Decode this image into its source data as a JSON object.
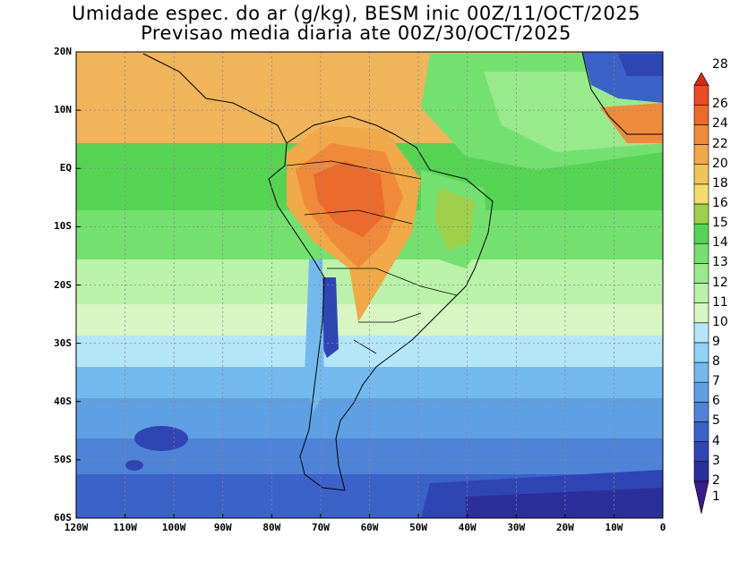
{
  "title": {
    "line1": "Umidade espec. do ar (g/kg), BESM inic 00Z/11/OCT/2025",
    "line2": "Previsao media diaria ate 00Z/30/OCT/2025"
  },
  "lat_labels": [
    "20N",
    "10N",
    "EQ",
    "10S",
    "20S",
    "30S",
    "40S",
    "50S",
    "60S"
  ],
  "lon_labels": [
    "120W",
    "110W",
    "100W",
    "90W",
    "80W",
    "70W",
    "60W",
    "50W",
    "40W",
    "30W",
    "20W",
    "10W",
    "0"
  ],
  "colorbar": {
    "levels": [
      "1",
      "2",
      "3",
      "4",
      "5",
      "6",
      "7",
      "8",
      "9",
      "10",
      "11",
      "12",
      "13",
      "14",
      "15",
      "16",
      "18",
      "20",
      "22",
      "24",
      "26",
      "28"
    ],
    "colors": [
      "#3a1a8c",
      "#2a2f9c",
      "#3045b4",
      "#3b62c8",
      "#4e83d8",
      "#5fa0e4",
      "#73b9ee",
      "#92d2f5",
      "#b4e6f7",
      "#d8f6c4",
      "#b9f2a8",
      "#98ea8c",
      "#74e070",
      "#55d454",
      "#9fd04c",
      "#f2dc6c",
      "#f0c45a",
      "#f0a848",
      "#ef8a3a",
      "#ec6a2c",
      "#e94c22",
      "#d92a18"
    ]
  },
  "map": {
    "lon_range": [
      -120,
      0
    ],
    "lat_range": [
      -60,
      20
    ],
    "grid": true,
    "field": "specific humidity (g/kg)"
  }
}
